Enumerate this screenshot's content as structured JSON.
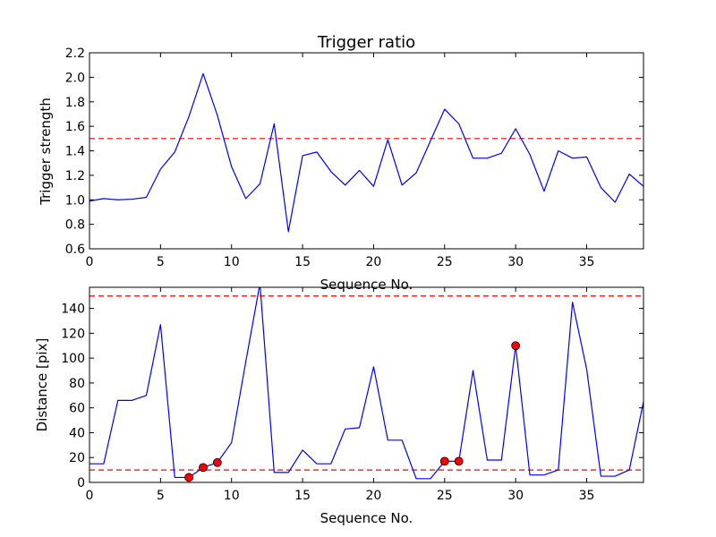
{
  "chart_data": [
    {
      "type": "line",
      "title": "Trigger ratio",
      "xlabel": "Sequence No.",
      "ylabel": "Trigger strength",
      "xlim": [
        0,
        39
      ],
      "ylim": [
        0.6,
        2.2
      ],
      "xticks": [
        "0",
        "5",
        "10",
        "15",
        "20",
        "25",
        "30",
        "35"
      ],
      "yticks": [
        "0.6",
        "0.8",
        "1.0",
        "1.2",
        "1.4",
        "1.6",
        "1.8",
        "2.0",
        "2.2"
      ],
      "grid": false,
      "line_color": "#0000ff",
      "threshold_color": "#ff0000",
      "thresholds": [
        1.5
      ],
      "x": [
        0,
        1,
        2,
        3,
        4,
        5,
        6,
        7,
        8,
        9,
        10,
        11,
        12,
        13,
        14,
        15,
        16,
        17,
        18,
        19,
        20,
        21,
        22,
        23,
        24,
        25,
        26,
        27,
        28,
        29,
        30,
        31,
        32,
        33,
        34,
        35,
        36,
        37,
        38,
        39
      ],
      "values": [
        0.99,
        1.01,
        1.0,
        1.005,
        1.02,
        1.25,
        1.39,
        1.68,
        2.03,
        1.69,
        1.27,
        1.01,
        1.13,
        1.62,
        0.74,
        1.36,
        1.39,
        1.23,
        1.12,
        1.24,
        1.11,
        1.49,
        1.12,
        1.22,
        1.48,
        1.74,
        1.62,
        1.34,
        1.34,
        1.38,
        1.58,
        1.37,
        1.07,
        1.4,
        1.34,
        1.35,
        1.1,
        0.98,
        1.21,
        1.11
      ]
    },
    {
      "type": "line",
      "title": "",
      "xlabel": "Sequence No.",
      "ylabel": "Distance [pix]",
      "xlim": [
        0,
        39
      ],
      "ylim": [
        0,
        157
      ],
      "xticks": [
        "0",
        "5",
        "10",
        "15",
        "20",
        "25",
        "30",
        "35"
      ],
      "yticks": [
        "0",
        "20",
        "40",
        "60",
        "80",
        "100",
        "120",
        "140"
      ],
      "grid": false,
      "line_color": "#0000ff",
      "threshold_color": "#ff0000",
      "marker_color": "#ff0000",
      "thresholds": [
        10,
        150
      ],
      "x": [
        0,
        1,
        2,
        3,
        4,
        5,
        6,
        7,
        8,
        9,
        10,
        11,
        12,
        13,
        14,
        15,
        16,
        17,
        18,
        19,
        20,
        21,
        22,
        23,
        24,
        25,
        26,
        27,
        28,
        29,
        30,
        31,
        32,
        33,
        34,
        35,
        36,
        37,
        38,
        39
      ],
      "values": [
        15,
        15,
        66,
        66,
        70,
        127,
        4,
        4,
        12,
        16,
        32,
        97,
        160,
        8,
        8,
        26,
        15,
        15,
        43,
        44,
        93,
        34,
        34,
        3,
        3,
        17,
        17,
        90,
        18,
        18,
        110,
        6,
        6,
        10,
        145,
        91,
        5,
        5,
        10,
        65
      ],
      "markers": [
        {
          "x": 7,
          "y": 4
        },
        {
          "x": 8,
          "y": 12
        },
        {
          "x": 9,
          "y": 16
        },
        {
          "x": 25,
          "y": 17
        },
        {
          "x": 26,
          "y": 17
        },
        {
          "x": 30,
          "y": 110
        }
      ]
    }
  ]
}
